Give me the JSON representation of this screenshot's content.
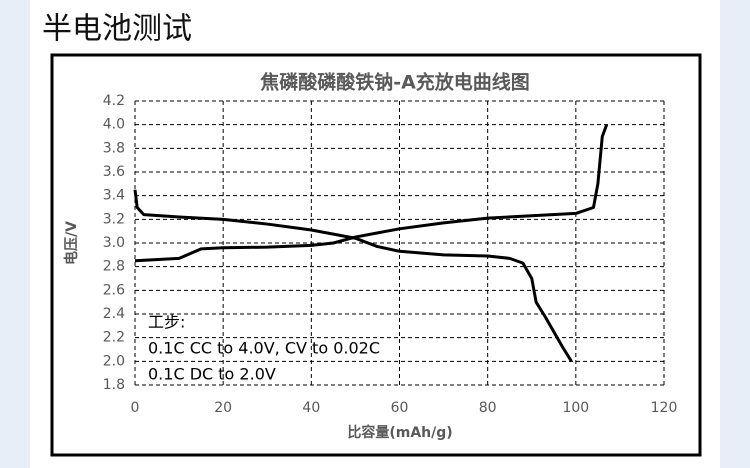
{
  "page_title": "半电池测试",
  "chart_data": {
    "type": "line",
    "title": "焦磷酸磷酸铁钠-A充放电曲线图",
    "x_label": "比容量(mAh/g)",
    "y_label": "电压/V",
    "annotations": [
      "工步:",
      "0.1C CC to 4.0V, CV to 0.02C",
      "0.1C DC to 2.0V"
    ],
    "xlim": [
      0,
      120
    ],
    "xticks": [
      0,
      20,
      40,
      60,
      80,
      100,
      120
    ],
    "ylim": [
      1.8,
      4.2
    ],
    "yticks": [
      1.8,
      {
        "value": 2.0,
        "label": "2.0"
      },
      2.2,
      2.4,
      2.6,
      2.8,
      {
        "value": 3.0,
        "label": "3.0"
      },
      3.2,
      3.4,
      3.6,
      3.8,
      {
        "value": 4.0,
        "label": "4.0"
      },
      4.2
    ],
    "grid": true,
    "series": [
      {
        "color": "#000000",
        "x": [
          0,
          10,
          15,
          20,
          30,
          40,
          45,
          50,
          60,
          70,
          80,
          90,
          100,
          104,
          105,
          106,
          107
        ],
        "values": [
          2.85,
          2.87,
          2.95,
          2.96,
          2.965,
          2.98,
          3.0,
          3.05,
          3.12,
          3.17,
          3.21,
          3.23,
          3.25,
          3.3,
          3.5,
          3.9,
          4.0
        ]
      },
      {
        "color": "#000000",
        "x": [
          0,
          0.5,
          2,
          10,
          20,
          30,
          40,
          50,
          55,
          60,
          70,
          80,
          85,
          88,
          90,
          91,
          93,
          95,
          97,
          99
        ],
        "values": [
          3.45,
          3.3,
          3.24,
          3.22,
          3.2,
          3.16,
          3.11,
          3.04,
          2.97,
          2.93,
          2.9,
          2.89,
          2.87,
          2.83,
          2.7,
          2.5,
          2.38,
          2.25,
          2.12,
          2.0
        ]
      }
    ]
  }
}
